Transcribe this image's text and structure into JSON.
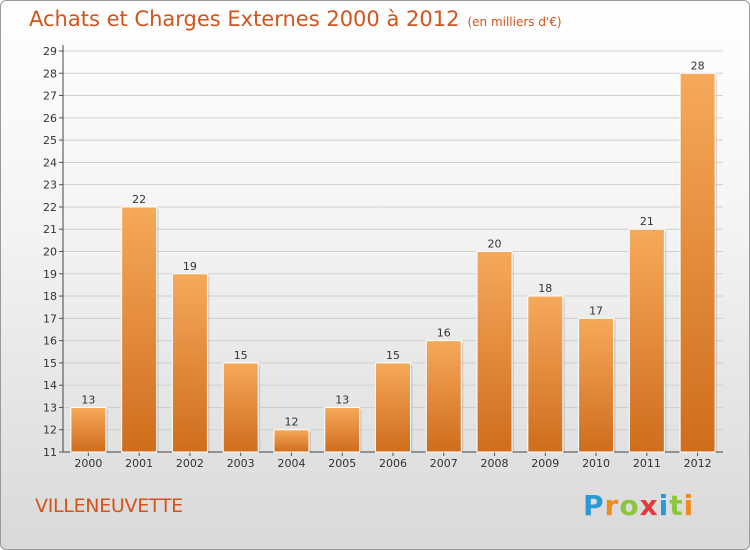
{
  "header": {
    "title": "Achats et Charges Externes 2000 à 2012",
    "unit": "(en milliers d'€)"
  },
  "footer": {
    "place": "VILLENEUVETTE",
    "logo_letters": [
      "P",
      "r",
      "o",
      "x",
      "i",
      "t",
      "i"
    ],
    "logo_colors": [
      "#2a9ad6",
      "#f08a1c",
      "#8cc63f",
      "#e23a3a",
      "#2a9ad6",
      "#8cc63f",
      "#f08a1c"
    ]
  },
  "colors": {
    "bar_light": "#f6a95a",
    "bar_dark": "#cf6d1c",
    "title": "#d2541b",
    "grid": "#cfcfcf"
  },
  "chart_data": {
    "type": "bar",
    "title": "Achats et Charges Externes 2000 à 2012",
    "subtitle": "(en milliers d'€)",
    "xlabel": "",
    "ylabel": "",
    "categories": [
      "2000",
      "2001",
      "2002",
      "2003",
      "2004",
      "2005",
      "2006",
      "2007",
      "2008",
      "2009",
      "2010",
      "2011",
      "2012"
    ],
    "values": [
      13,
      22,
      19,
      15,
      12,
      13,
      15,
      16,
      20,
      18,
      17,
      21,
      28
    ],
    "ylim": [
      11,
      29
    ],
    "yticks": [
      11,
      12,
      13,
      14,
      15,
      16,
      17,
      18,
      19,
      20,
      21,
      22,
      23,
      24,
      25,
      26,
      27,
      28,
      29
    ],
    "grid": true,
    "legend": "none"
  }
}
